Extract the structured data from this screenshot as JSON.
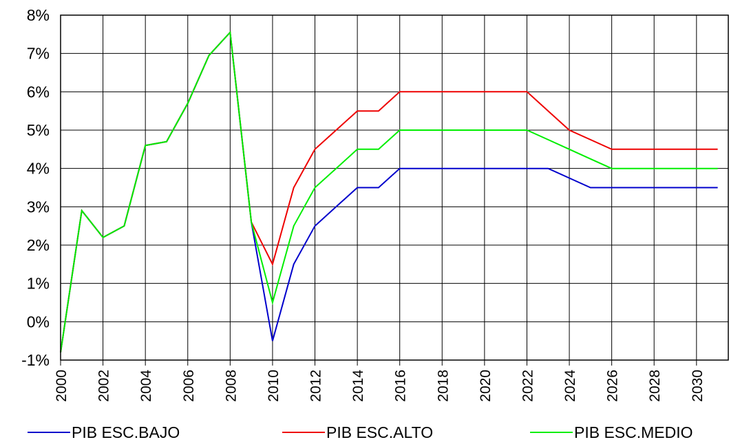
{
  "chart_data": {
    "type": "line",
    "title": "",
    "xlabel": "",
    "ylabel": "",
    "ylim": [
      -1,
      8
    ],
    "y_tick_labels": [
      "-1%",
      "0%",
      "1%",
      "2%",
      "3%",
      "4%",
      "5%",
      "6%",
      "7%",
      "8%"
    ],
    "x_tick_labels": [
      "2000",
      "2002",
      "2004",
      "2006",
      "2008",
      "2010",
      "2012",
      "2014",
      "2016",
      "2018",
      "2020",
      "2022",
      "2024",
      "2026",
      "2028",
      "2030"
    ],
    "grid": true,
    "legend_position": "bottom",
    "x": [
      2000,
      2001,
      2002,
      2003,
      2004,
      2005,
      2006,
      2007,
      2008,
      2009,
      2010,
      2011,
      2012,
      2013,
      2014,
      2015,
      2016,
      2017,
      2018,
      2019,
      2020,
      2021,
      2022,
      2023,
      2024,
      2025,
      2026,
      2027,
      2028,
      2029,
      2030,
      2031
    ],
    "series": [
      {
        "name": "PIB ESC.BAJO",
        "color": "#0000cc",
        "values": [
          -0.8,
          2.9,
          2.2,
          2.5,
          4.6,
          4.7,
          5.7,
          6.95,
          7.55,
          2.6,
          -0.5,
          1.5,
          2.5,
          3.0,
          3.5,
          3.5,
          4.0,
          4.0,
          4.0,
          4.0,
          4.0,
          4.0,
          4.0,
          4.0,
          3.75,
          3.5,
          3.5,
          3.5,
          3.5,
          3.5,
          3.5,
          3.5
        ]
      },
      {
        "name": "PIB ESC.ALTO",
        "color": "#ee0000",
        "values": [
          -0.8,
          2.9,
          2.2,
          2.5,
          4.6,
          4.7,
          5.7,
          6.95,
          7.55,
          2.6,
          1.5,
          3.5,
          4.5,
          5.0,
          5.5,
          5.5,
          6.0,
          6.0,
          6.0,
          6.0,
          6.0,
          6.0,
          6.0,
          5.5,
          5.0,
          4.75,
          4.5,
          4.5,
          4.5,
          4.5,
          4.5,
          4.5
        ]
      },
      {
        "name": "PIB ESC.MEDIO",
        "color": "#00ee00",
        "values": [
          -0.8,
          2.9,
          2.2,
          2.5,
          4.6,
          4.7,
          5.7,
          6.95,
          7.55,
          2.6,
          0.5,
          2.5,
          3.5,
          4.0,
          4.5,
          4.5,
          5.0,
          5.0,
          5.0,
          5.0,
          5.0,
          5.0,
          5.0,
          4.75,
          4.5,
          4.25,
          4.0,
          4.0,
          4.0,
          4.0,
          4.0,
          4.0
        ]
      }
    ]
  }
}
